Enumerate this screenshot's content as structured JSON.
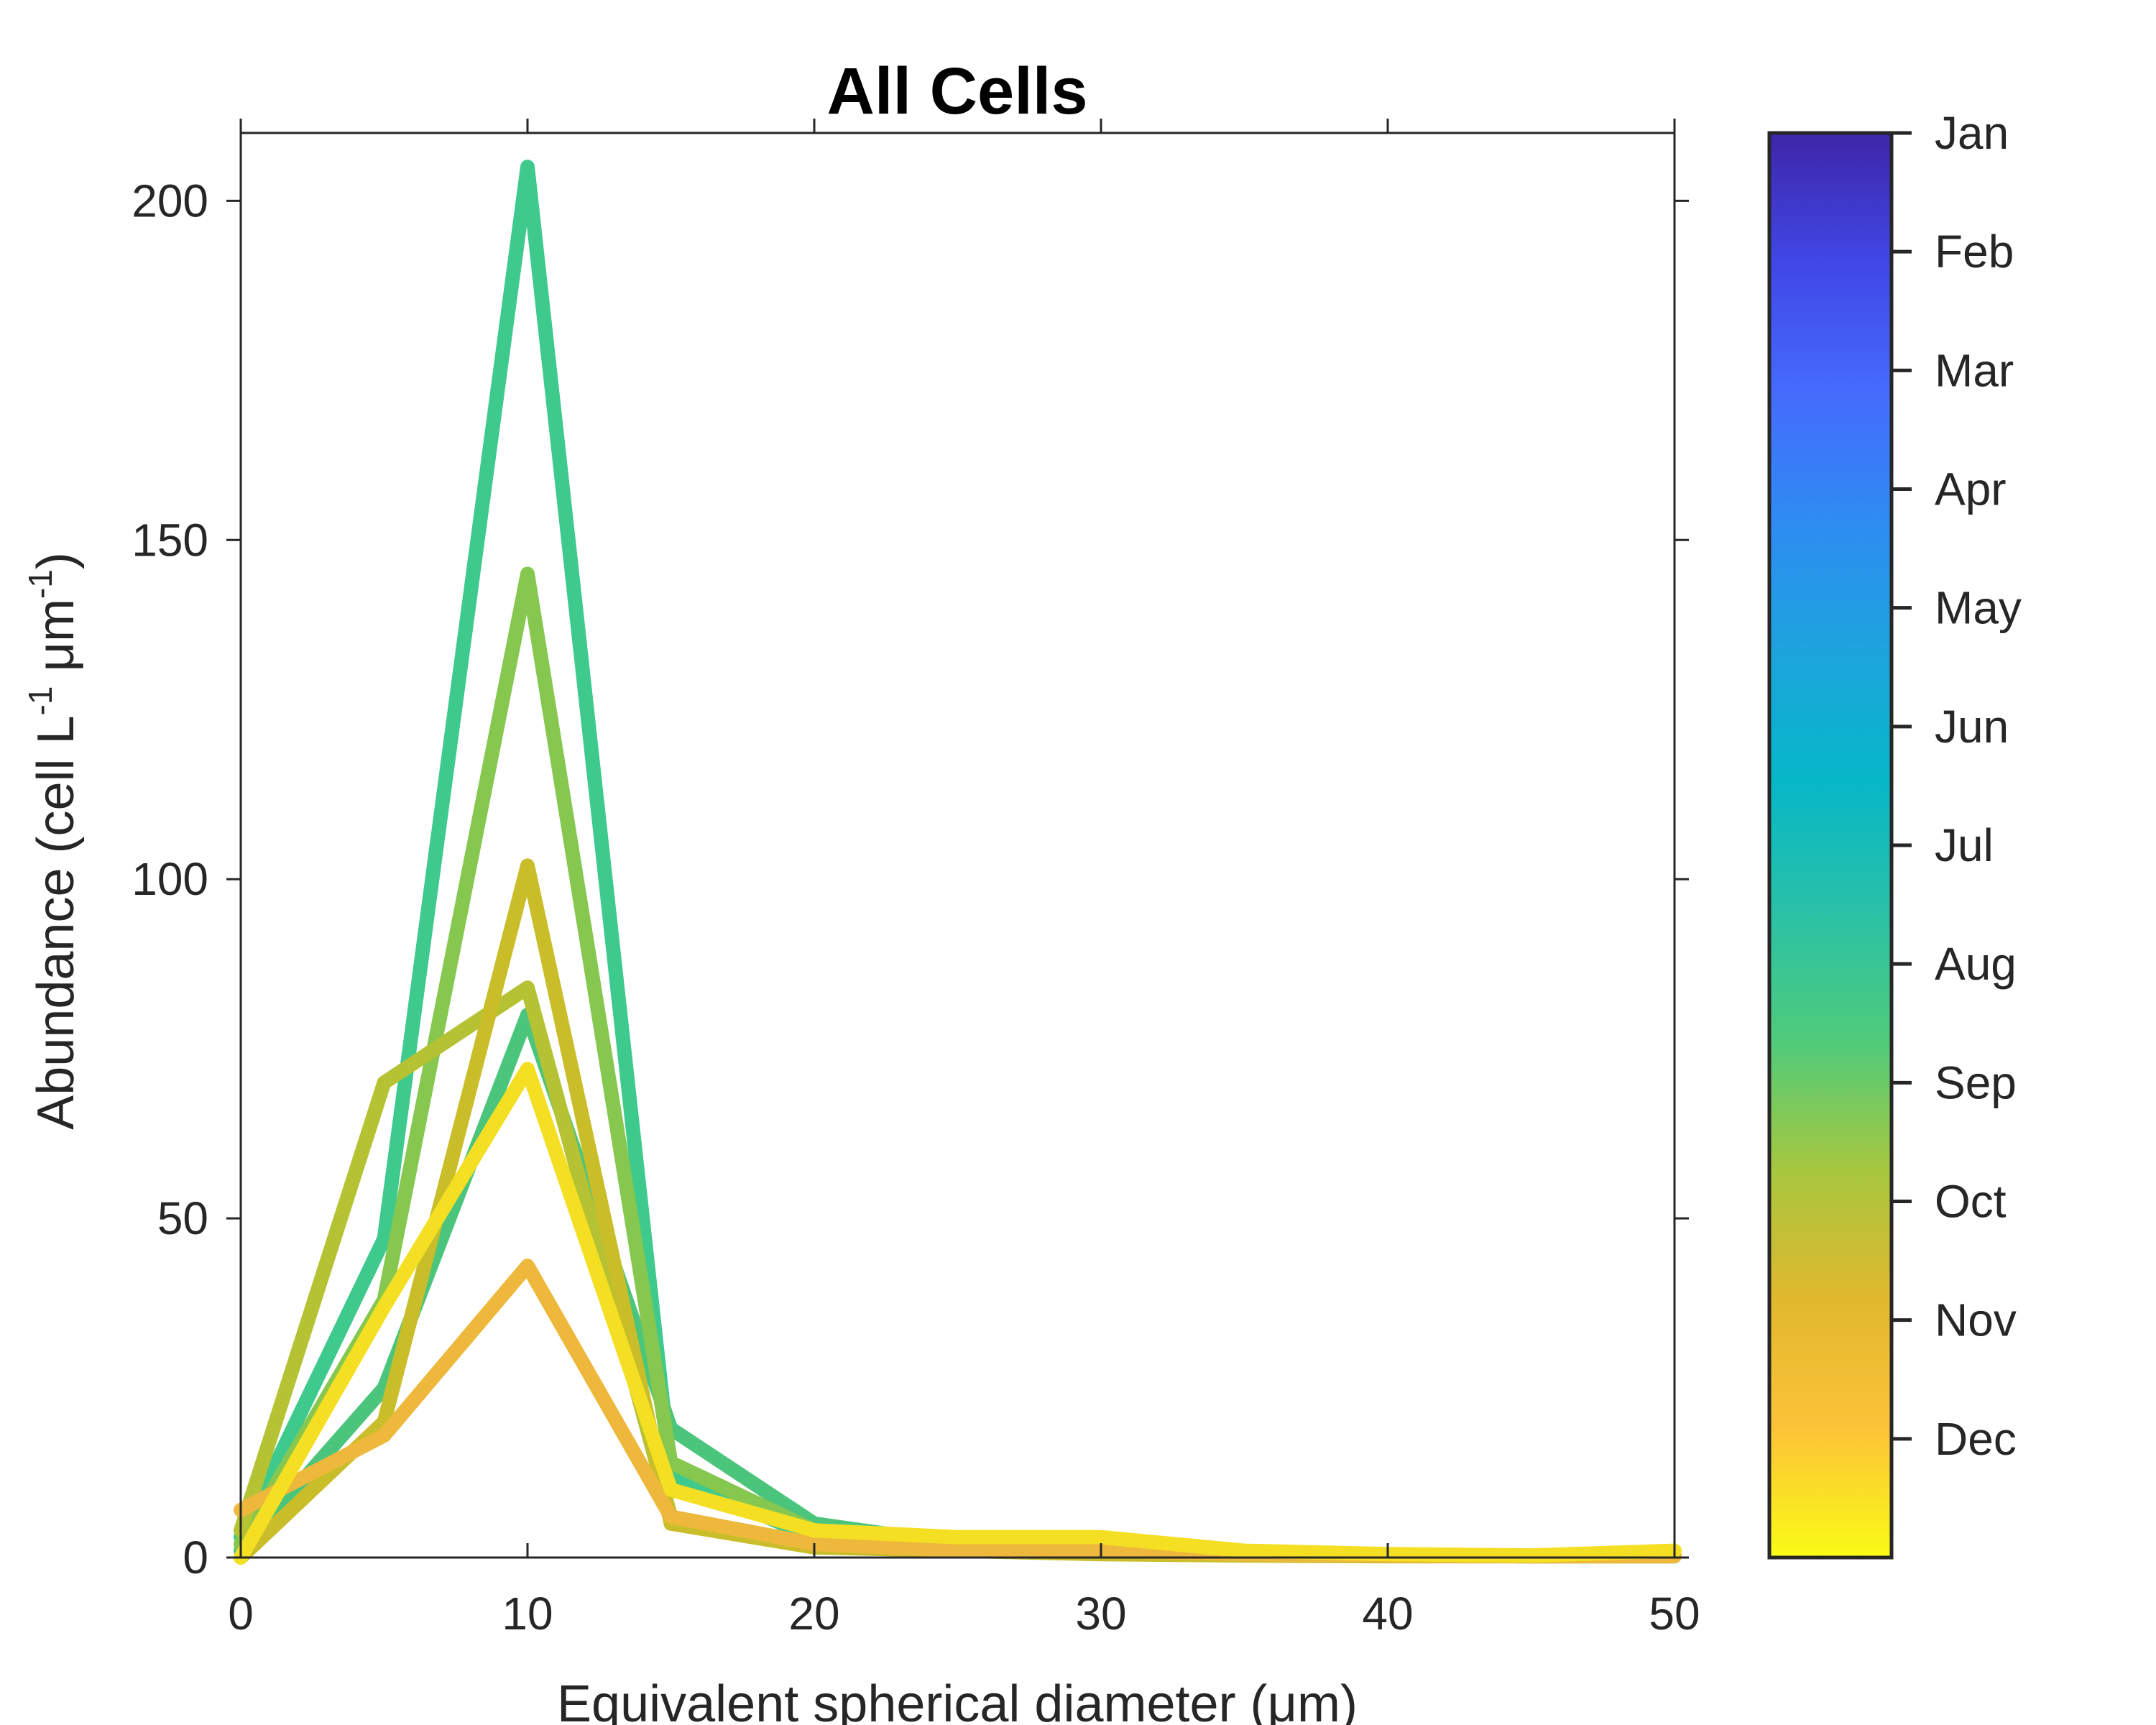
{
  "chart_data": {
    "type": "line",
    "title": "All Cells",
    "xlabel": "Equivalent spherical diameter (μm)",
    "ylabel": {
      "text": "Abundance (cell L",
      "sup1": "-1",
      "mid": " μm",
      "sup2": "-1",
      "end": ")"
    },
    "xlim": [
      0,
      50
    ],
    "ylim": [
      0,
      210
    ],
    "xticks": [
      0,
      10,
      20,
      30,
      40,
      50
    ],
    "yticks": [
      0,
      50,
      100,
      150,
      200
    ],
    "grid": false,
    "x": [
      0,
      5,
      10,
      15,
      20,
      25,
      30,
      35,
      40,
      45,
      50
    ],
    "series": [
      {
        "color": "#3EC98D",
        "values": [
          3,
          47,
          205,
          12,
          3,
          1.5,
          1,
          0.5,
          0.3,
          0.2,
          0.2
        ]
      },
      {
        "color": "#4CC57C",
        "values": [
          1,
          25,
          80,
          19,
          5,
          2,
          1.5,
          0.5,
          0.3,
          0.2,
          0.3
        ]
      },
      {
        "color": "#86C74F",
        "values": [
          2,
          38,
          145,
          14,
          4,
          2,
          1.5,
          0.5,
          0.3,
          0.2,
          0.3
        ]
      },
      {
        "color": "#B5C233",
        "values": [
          4,
          70,
          84,
          6,
          2,
          1,
          1,
          0.5,
          0.3,
          0.2,
          0.2
        ]
      },
      {
        "color": "#C9BE2A",
        "values": [
          0,
          20,
          102,
          5,
          1.5,
          1,
          0.5,
          0.3,
          0.2,
          0.2,
          0.2
        ]
      },
      {
        "color": "#EDB83B",
        "values": [
          7,
          18,
          43,
          6,
          2,
          1,
          1,
          0.5,
          0.3,
          0.2,
          0.2
        ]
      },
      {
        "color": "#F4DF22",
        "values": [
          0,
          37,
          72,
          10,
          4,
          3,
          3,
          1,
          0.5,
          0.3,
          1
        ]
      }
    ],
    "colorbar": {
      "labels": [
        "Jan",
        "Feb",
        "Mar",
        "Apr",
        "May",
        "Jun",
        "Jul",
        "Aug",
        "Sep",
        "Oct",
        "Nov",
        "Dec"
      ],
      "colors": [
        "#3E26A8",
        "#4047E6",
        "#456BFD",
        "#2E8CF2",
        "#1DA4DD",
        "#06B7C8",
        "#29C1A7",
        "#4FCB7B",
        "#A6C73F",
        "#E1B82E",
        "#FCC338",
        "#F9FB14"
      ]
    }
  }
}
